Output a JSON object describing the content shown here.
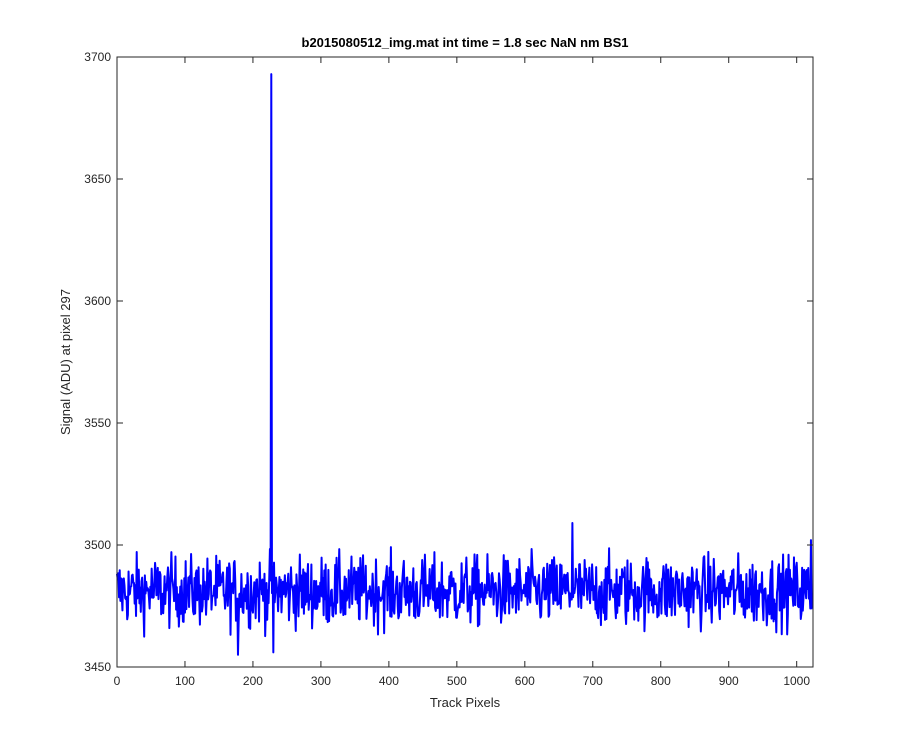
{
  "chart_data": {
    "type": "line",
    "title": "b2015080512_img.mat int time = 1.8 sec  NaN nm BS1",
    "xlabel": "Track Pixels",
    "ylabel": "Signal (ADU) at pixel 297",
    "xlim": [
      0,
      1024
    ],
    "ylim": [
      3450,
      3700
    ],
    "xticks": [
      0,
      100,
      200,
      300,
      400,
      500,
      600,
      700,
      800,
      900,
      1000
    ],
    "yticks": [
      3450,
      3500,
      3550,
      3600,
      3650,
      3700
    ],
    "xtick_labels": [
      "0",
      "100",
      "200",
      "300",
      "400",
      "500",
      "600",
      "700",
      "800",
      "900",
      "1000"
    ],
    "ytick_labels": [
      "3450",
      "3500",
      "3550",
      "3600",
      "3650",
      "3700"
    ],
    "grid": false,
    "series": [
      {
        "color": "#0000ff",
        "baseline_mean": 3481,
        "noise_range": [
          3455,
          3509
        ],
        "n_points": 1024,
        "notable_points": [
          {
            "x": 227,
            "y": 3693
          },
          {
            "x": 230,
            "y": 3456
          },
          {
            "x": 178,
            "y": 3455
          },
          {
            "x": 670,
            "y": 3509
          },
          {
            "x": 1021,
            "y": 3502
          }
        ]
      }
    ]
  }
}
